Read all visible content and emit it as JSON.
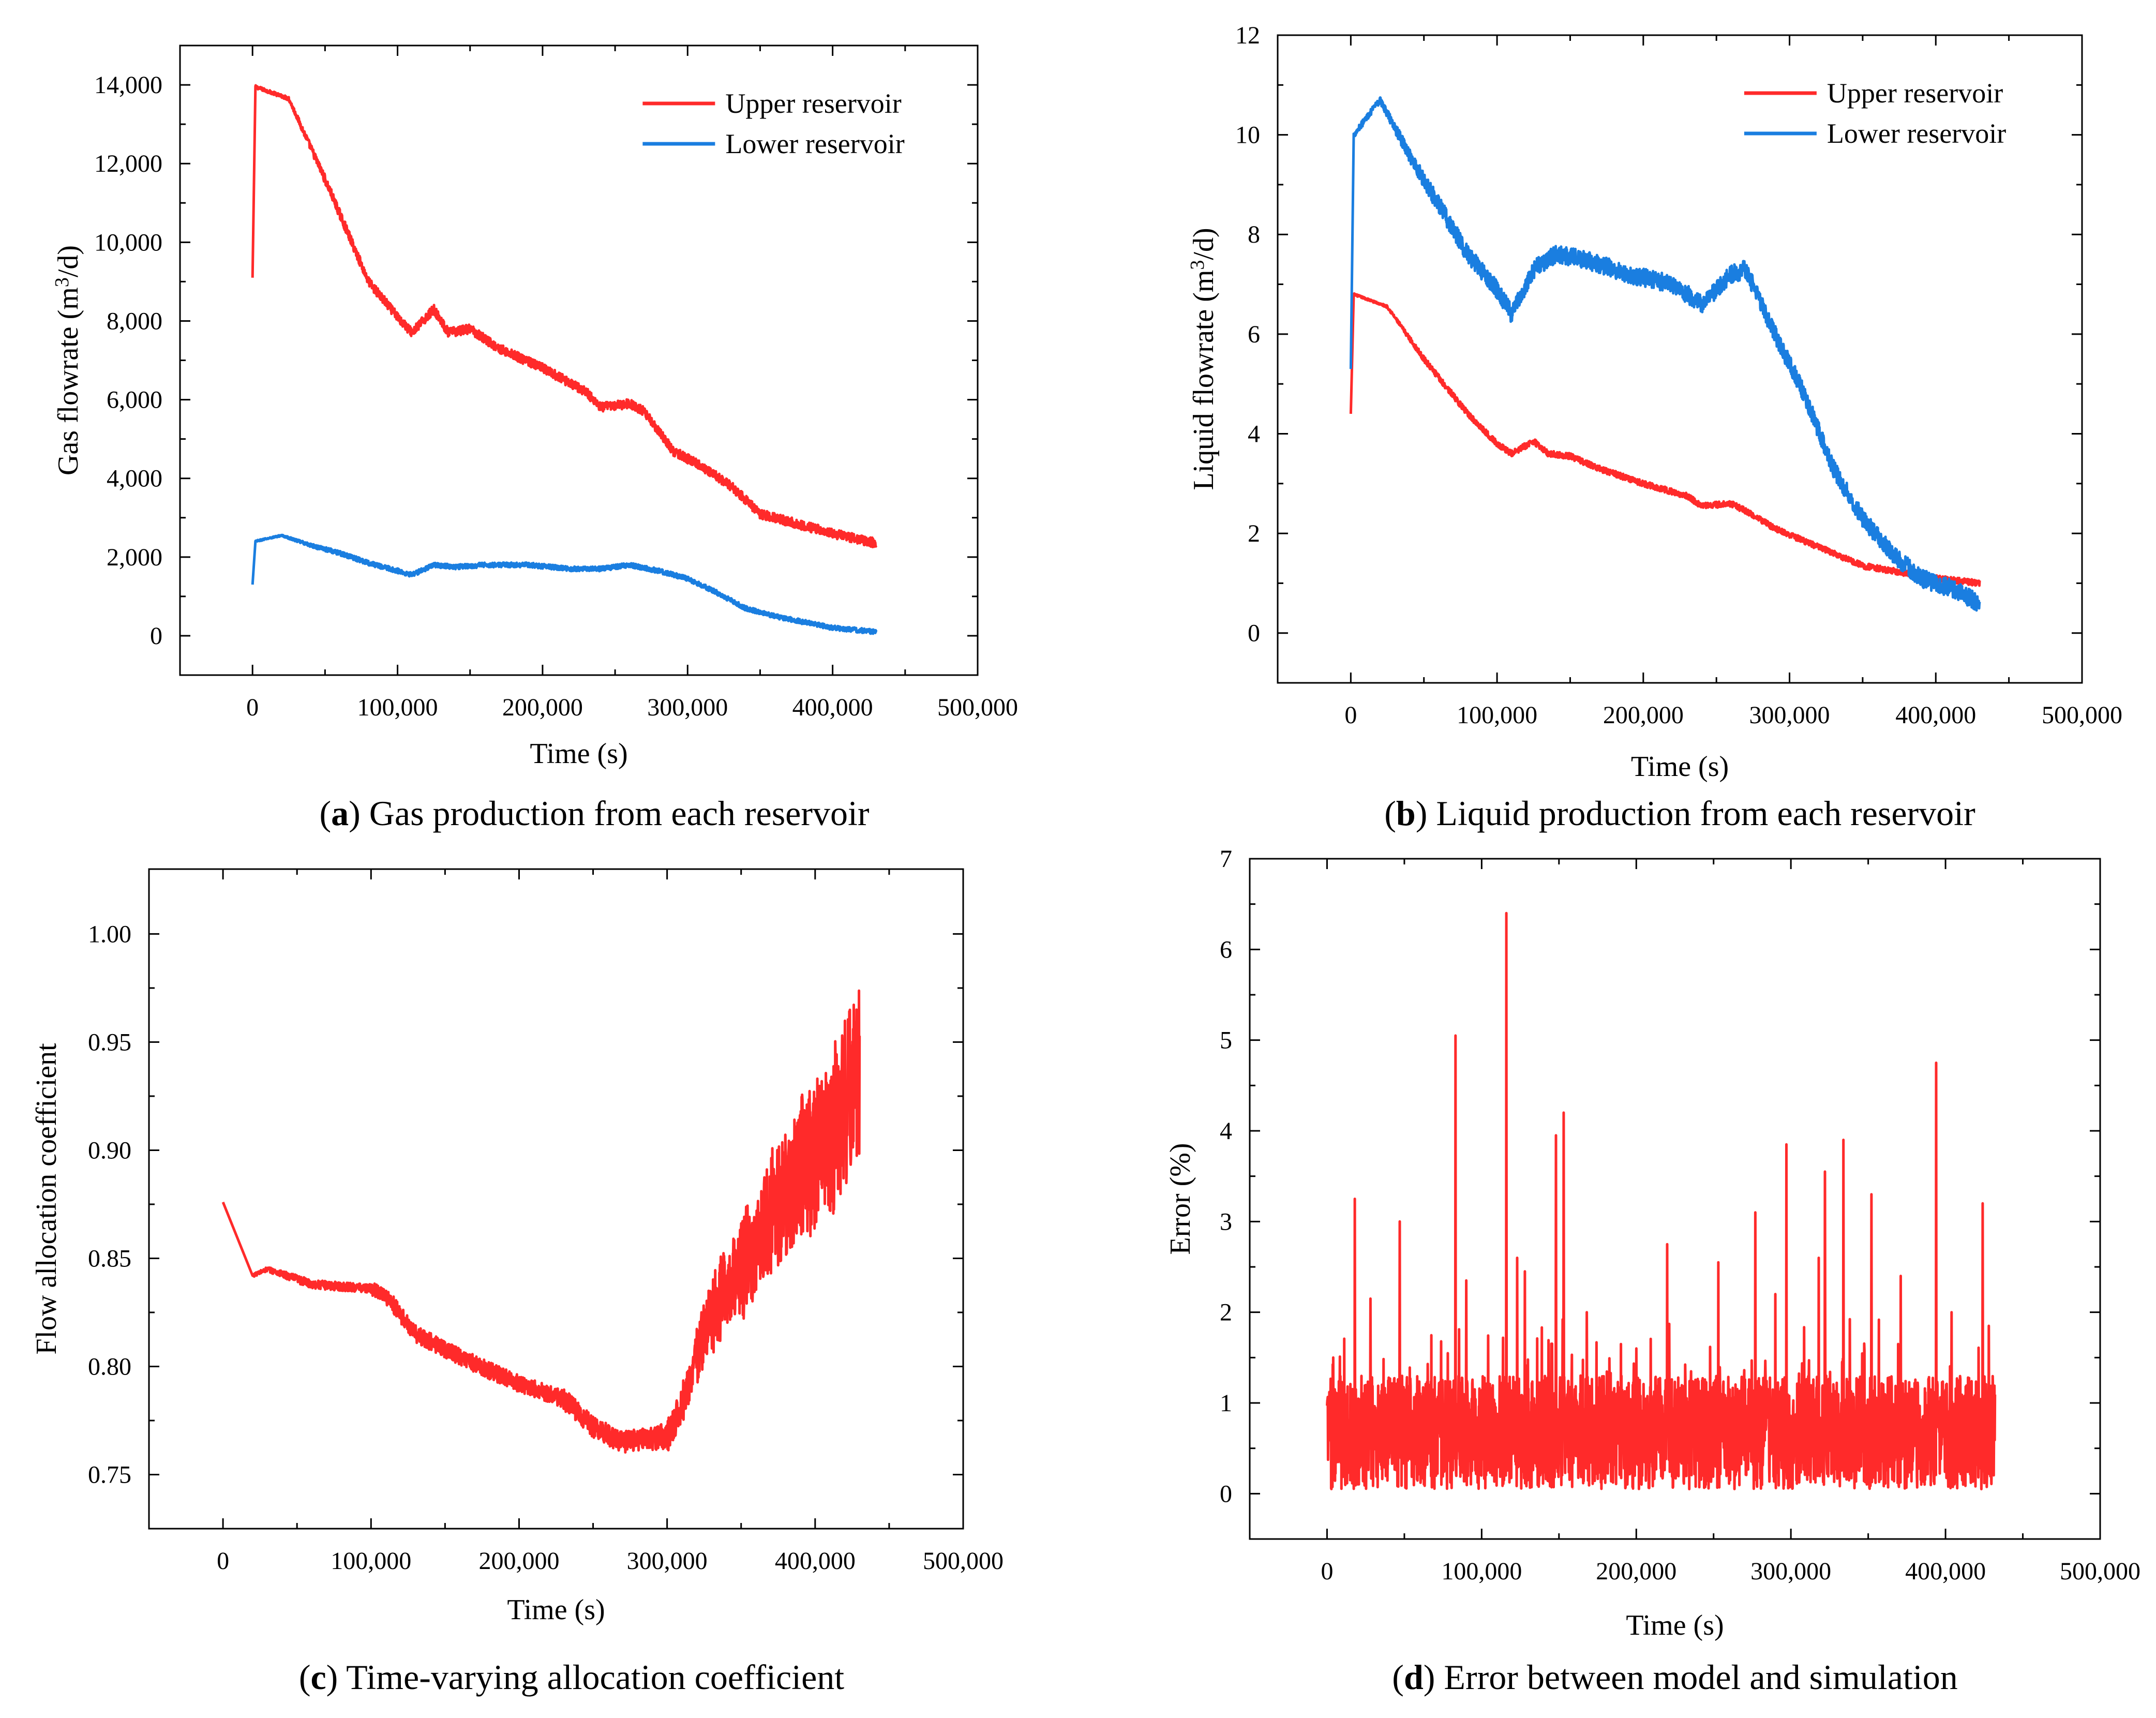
{
  "chart_data": [
    {
      "type": "line",
      "caption_letter": "a",
      "caption_text": "Gas production from each reservoir",
      "xlabel": "Time (s)",
      "ylabel": "Gas flowrate (m3/d)",
      "xlim": [
        -50000,
        500000
      ],
      "ylim": [
        -1000,
        15000
      ],
      "xticks": [
        0,
        100000,
        200000,
        300000,
        400000,
        500000
      ],
      "xtick_labels": [
        "0",
        "100,000",
        "200,000",
        "300,000",
        "400,000",
        "500,000"
      ],
      "yticks": [
        0,
        2000,
        4000,
        6000,
        8000,
        10000,
        12000,
        14000
      ],
      "ytick_labels": [
        "0",
        "2,000",
        "4,000",
        "6,000",
        "8,000",
        "10,000",
        "12,000",
        "14,000"
      ],
      "legend_position": "top-right",
      "series": [
        {
          "name": "Upper  reservoir",
          "color": "#ff2a2a",
          "noise": 120,
          "x": [
            0,
            1000,
            2000,
            25000,
            50000,
            80000,
            100000,
            110000,
            125000,
            135000,
            150000,
            170000,
            200000,
            230000,
            240000,
            260000,
            270000,
            290000,
            310000,
            330000,
            350000,
            370000,
            400000,
            430000
          ],
          "y": [
            9100,
            12300,
            13950,
            13650,
            11600,
            9000,
            8100,
            7700,
            8300,
            7700,
            7800,
            7300,
            6800,
            6200,
            5800,
            5900,
            5700,
            4700,
            4300,
            3800,
            3100,
            2900,
            2600,
            2350
          ]
        },
        {
          "name": "Lower  reservoir",
          "color": "#1a7ee0",
          "noise": 60,
          "x": [
            0,
            1000,
            2000,
            20000,
            40000,
            60000,
            80000,
            100000,
            110000,
            125000,
            140000,
            160000,
            190000,
            220000,
            240000,
            260000,
            280000,
            300000,
            320000,
            340000,
            360000,
            380000,
            400000,
            430000
          ],
          "y": [
            1300,
            2200,
            2400,
            2550,
            2300,
            2100,
            1850,
            1650,
            1550,
            1800,
            1750,
            1800,
            1800,
            1700,
            1700,
            1800,
            1650,
            1450,
            1100,
            700,
            500,
            350,
            200,
            100
          ]
        }
      ]
    },
    {
      "type": "line",
      "caption_letter": "b",
      "caption_text": "Liquid production from each reservoir",
      "xlabel": "Time (s)",
      "ylabel": "Liquid flowrate (m3/d)",
      "xlim": [
        -50000,
        500000
      ],
      "ylim": [
        -1,
        12
      ],
      "xticks": [
        0,
        100000,
        200000,
        300000,
        400000,
        500000
      ],
      "xtick_labels": [
        "0",
        "100,000",
        "200,000",
        "300,000",
        "400,000",
        "500,000"
      ],
      "yticks": [
        0,
        2,
        4,
        6,
        8,
        10,
        12
      ],
      "ytick_labels": [
        "0",
        "2",
        "4",
        "6",
        "8",
        "10",
        "12"
      ],
      "legend_position": "top-right",
      "series": [
        {
          "name": "Upper  reservoir",
          "color": "#ff2a2a",
          "noise": 0.06,
          "x": [
            0,
            1000,
            2000,
            25000,
            50000,
            80000,
            100000,
            110000,
            125000,
            135000,
            150000,
            170000,
            200000,
            230000,
            240000,
            260000,
            270000,
            290000,
            310000,
            330000,
            350000,
            370000,
            400000,
            430000
          ],
          "y": [
            4.4,
            5.5,
            6.8,
            6.55,
            5.5,
            4.4,
            3.8,
            3.6,
            3.85,
            3.6,
            3.55,
            3.3,
            3.0,
            2.75,
            2.55,
            2.6,
            2.45,
            2.1,
            1.85,
            1.6,
            1.35,
            1.25,
            1.1,
            1.0
          ]
        },
        {
          "name": "Lower  reservoir",
          "color": "#1a7ee0",
          "noise": 0.18,
          "x": [
            0,
            1000,
            2000,
            20000,
            40000,
            60000,
            80000,
            100000,
            110000,
            125000,
            140000,
            160000,
            190000,
            220000,
            240000,
            260000,
            270000,
            290000,
            310000,
            330000,
            350000,
            370000,
            390000,
            410000,
            430000
          ],
          "y": [
            5.3,
            9.5,
            10.0,
            10.7,
            9.6,
            8.6,
            7.6,
            6.9,
            6.4,
            7.3,
            7.6,
            7.5,
            7.2,
            7.0,
            6.6,
            7.2,
            7.3,
            6.0,
            4.8,
            3.3,
            2.3,
            1.6,
            1.1,
            0.9,
            0.6
          ]
        }
      ]
    },
    {
      "type": "line",
      "caption_letter": "c",
      "caption_text": "Time-varying allocation coefficient",
      "xlabel": "Time (s)",
      "ylabel": "Flow allocation coefficient",
      "xlim": [
        -50000,
        500000
      ],
      "ylim": [
        0.725,
        1.03
      ],
      "xticks": [
        0,
        100000,
        200000,
        300000,
        400000,
        500000
      ],
      "xtick_labels": [
        "0",
        "100,000",
        "200,000",
        "300,000",
        "400,000",
        "500,000"
      ],
      "yticks": [
        0.75,
        0.8,
        0.85,
        0.9,
        0.95,
        1.0
      ],
      "ytick_labels": [
        "0.75",
        "0.80",
        "0.85",
        "0.90",
        "0.95",
        "1.00"
      ],
      "series": [
        {
          "name": "Flow allocation coefficient",
          "color": "#ff2a2a",
          "x": [
            0,
            1000,
            20000,
            30000,
            60000,
            100000,
            110000,
            130000,
            150000,
            180000,
            200000,
            230000,
            250000,
            270000,
            290000,
            300000,
            310000,
            320000,
            330000,
            350000,
            370000,
            390000,
            410000,
            420000,
            430000
          ],
          "y": [
            0.876,
            0.854,
            0.842,
            0.845,
            0.838,
            0.836,
            0.833,
            0.815,
            0.808,
            0.798,
            0.792,
            0.785,
            0.772,
            0.765,
            0.767,
            0.768,
            0.782,
            0.805,
            0.825,
            0.845,
            0.87,
            0.89,
            0.905,
            0.925,
            0.94
          ],
          "noise_by_segment": [
            0.002,
            0.002,
            0.002,
            0.002,
            0.002,
            0.003,
            0.004,
            0.004,
            0.004,
            0.004,
            0.004,
            0.005,
            0.005,
            0.005,
            0.006,
            0.008,
            0.01,
            0.014,
            0.02,
            0.025,
            0.03,
            0.035,
            0.04,
            0.045
          ]
        }
      ]
    },
    {
      "type": "line",
      "caption_letter": "d",
      "caption_text": "Error between model and simulation",
      "xlabel": "Time (s)",
      "ylabel": "Error (%)",
      "xlim": [
        -50000,
        500000
      ],
      "ylim": [
        -0.5,
        7
      ],
      "xticks": [
        0,
        100000,
        200000,
        300000,
        400000,
        500000
      ],
      "xtick_labels": [
        "0",
        "100,000",
        "200,000",
        "300,000",
        "400,000",
        "500,000"
      ],
      "yticks": [
        0,
        1,
        2,
        3,
        4,
        5,
        6,
        7
      ],
      "ytick_labels": [
        "0",
        "1",
        "2",
        "3",
        "4",
        "5",
        "6",
        "7"
      ],
      "series": [
        {
          "name": "Error",
          "color": "#ff2a2a",
          "baseline": [
            0.05,
            1.3
          ],
          "spikes": {
            "x": [
              4000,
              18000,
              28000,
              47000,
              83000,
              90000,
              116000,
              123000,
              128000,
              148000,
              153000,
              168000,
              200000,
              220000,
              253000,
              277000,
              290000,
              297000,
              318000,
              322000,
              334000,
              352000,
              371000,
              394000,
              404000,
              424000,
              428000
            ],
            "y": [
              1.5,
              3.25,
              2.15,
              3.0,
              5.05,
              2.35,
              6.4,
              2.6,
              2.45,
              3.95,
              4.2,
              2.0,
              1.6,
              2.75,
              2.55,
              3.1,
              2.2,
              3.85,
              2.6,
              3.55,
              3.9,
              3.3,
              2.4,
              4.75,
              2.0,
              3.2,
              1.85
            ]
          }
        }
      ]
    }
  ]
}
